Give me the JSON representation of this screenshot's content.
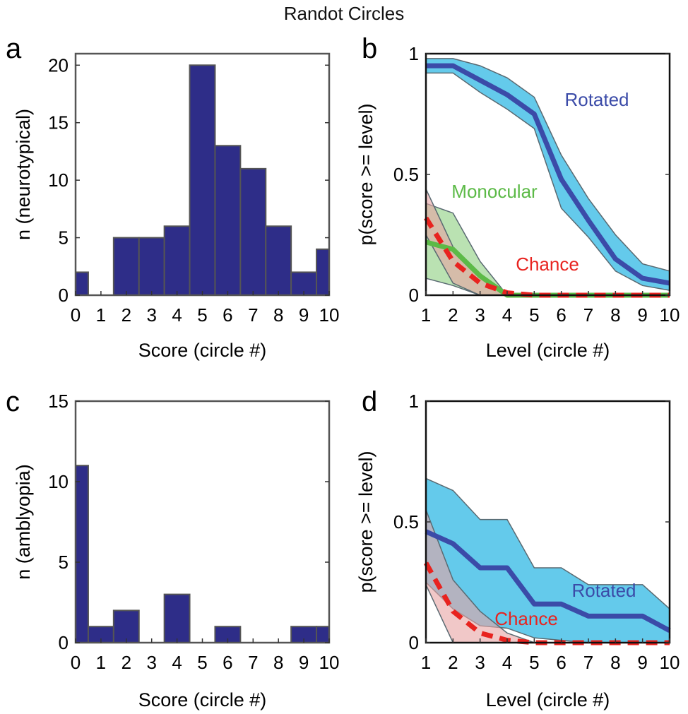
{
  "figure": {
    "title": "Randot Circles"
  },
  "colors": {
    "bar_fill": "#2e2d88",
    "bar_edge": "#555555",
    "rotated_line": "#3b4ba8",
    "rotated_band": "#5cc7ea",
    "monocular_line": "#5cba47",
    "monocular_band": "#8ccf7e",
    "chance_line": "#e8231f",
    "chance_band": "#e7a3a3",
    "band_edge": "#5a6a72",
    "rotated_label": "#3b4ba8",
    "monocular_label": "#5cba47",
    "chance_label": "#e8231f"
  },
  "chart_data": [
    {
      "panel": "a",
      "type": "bar",
      "xlabel": "Score (circle #)",
      "ylabel": "n (neurotypical)",
      "xlim": [
        0,
        10
      ],
      "ylim": [
        0,
        21
      ],
      "xticks": [
        "0",
        "1",
        "2",
        "3",
        "4",
        "5",
        "6",
        "7",
        "8",
        "9",
        "10"
      ],
      "yticks": [
        "0",
        "5",
        "10",
        "15",
        "20"
      ],
      "bars": [
        {
          "x0": 0.0,
          "x1": 0.5,
          "value": 2
        },
        {
          "x0": 0.5,
          "x1": 1.5,
          "value": 0
        },
        {
          "x0": 1.5,
          "x1": 2.5,
          "value": 5
        },
        {
          "x0": 2.5,
          "x1": 3.5,
          "value": 5
        },
        {
          "x0": 3.5,
          "x1": 4.5,
          "value": 6
        },
        {
          "x0": 4.5,
          "x1": 5.5,
          "value": 20
        },
        {
          "x0": 5.5,
          "x1": 6.5,
          "value": 13
        },
        {
          "x0": 6.5,
          "x1": 7.5,
          "value": 11
        },
        {
          "x0": 7.5,
          "x1": 8.5,
          "value": 6
        },
        {
          "x0": 8.5,
          "x1": 9.5,
          "value": 2
        },
        {
          "x0": 9.5,
          "x1": 10.0,
          "value": 4
        }
      ]
    },
    {
      "panel": "b",
      "type": "line",
      "xlabel": "Level (circle #)",
      "ylabel": "p(score >= level)",
      "xlim": [
        1,
        10
      ],
      "ylim": [
        0,
        1
      ],
      "xticks": [
        "1",
        "2",
        "3",
        "4",
        "5",
        "6",
        "7",
        "8",
        "9",
        "10"
      ],
      "yticks": [
        "0",
        "0.5",
        "1"
      ],
      "x": [
        1,
        2,
        3,
        4,
        5,
        6,
        7,
        8,
        9,
        10
      ],
      "series": [
        {
          "name": "Rotated",
          "key": "rotated",
          "values": [
            0.95,
            0.95,
            0.89,
            0.83,
            0.75,
            0.48,
            0.31,
            0.15,
            0.07,
            0.05
          ],
          "lower": [
            0.92,
            0.92,
            0.84,
            0.77,
            0.69,
            0.36,
            0.24,
            0.1,
            0.04,
            0.02
          ],
          "upper": [
            0.98,
            0.98,
            0.95,
            0.9,
            0.82,
            0.58,
            0.4,
            0.25,
            0.13,
            0.1
          ]
        },
        {
          "name": "Monocular",
          "key": "monocular",
          "values": [
            0.22,
            0.19,
            0.08,
            0.0,
            0.0,
            0.0,
            0.0,
            0.0,
            0.0,
            0.0
          ],
          "lower": [
            0.07,
            0.04,
            0.0,
            0.0,
            0.0,
            0.0,
            0.0,
            0.0,
            0.0,
            0.0
          ],
          "upper": [
            0.38,
            0.34,
            0.14,
            0.0,
            0.0,
            0.0,
            0.0,
            0.0,
            0.0,
            0.0
          ]
        },
        {
          "name": "Chance",
          "key": "chance",
          "values": [
            0.32,
            0.14,
            0.05,
            0.01,
            0.0,
            0.0,
            0.0,
            0.0,
            0.0,
            0.0
          ],
          "lower": [
            0.25,
            0.05,
            0.0,
            0.0,
            0.0,
            0.0,
            0.0,
            0.0,
            0.0,
            0.0
          ],
          "upper": [
            0.44,
            0.2,
            0.08,
            0.0,
            0.0,
            0.0,
            0.0,
            0.0,
            0.0,
            0.0
          ]
        }
      ],
      "labels": {
        "rotated": "Rotated",
        "monocular": "Monocular",
        "chance": "Chance"
      }
    },
    {
      "panel": "c",
      "type": "bar",
      "xlabel": "Score (circle #)",
      "ylabel": "n (amblyopia)",
      "xlim": [
        0,
        10
      ],
      "ylim": [
        0,
        15
      ],
      "xticks": [
        "0",
        "1",
        "2",
        "3",
        "4",
        "5",
        "6",
        "7",
        "8",
        "9",
        "10"
      ],
      "yticks": [
        "0",
        "5",
        "10",
        "15"
      ],
      "bars": [
        {
          "x0": 0.0,
          "x1": 0.5,
          "value": 11
        },
        {
          "x0": 0.5,
          "x1": 1.5,
          "value": 1
        },
        {
          "x0": 1.5,
          "x1": 2.5,
          "value": 2
        },
        {
          "x0": 2.5,
          "x1": 3.5,
          "value": 0
        },
        {
          "x0": 3.5,
          "x1": 4.5,
          "value": 3
        },
        {
          "x0": 4.5,
          "x1": 5.5,
          "value": 0
        },
        {
          "x0": 5.5,
          "x1": 6.5,
          "value": 1
        },
        {
          "x0": 6.5,
          "x1": 7.5,
          "value": 0
        },
        {
          "x0": 7.5,
          "x1": 8.5,
          "value": 0
        },
        {
          "x0": 8.5,
          "x1": 9.5,
          "value": 1
        },
        {
          "x0": 9.5,
          "x1": 10.0,
          "value": 1
        }
      ]
    },
    {
      "panel": "d",
      "type": "line",
      "xlabel": "Level (circle #)",
      "ylabel": "p(score >= level)",
      "xlim": [
        1,
        10
      ],
      "ylim": [
        0,
        1
      ],
      "xticks": [
        "1",
        "2",
        "3",
        "4",
        "5",
        "6",
        "7",
        "8",
        "9",
        "10"
      ],
      "yticks": [
        "0",
        "0.5",
        "1"
      ],
      "x": [
        1,
        2,
        3,
        4,
        5,
        6,
        7,
        8,
        9,
        10
      ],
      "series": [
        {
          "name": "Rotated",
          "key": "rotated",
          "values": [
            0.46,
            0.41,
            0.31,
            0.31,
            0.16,
            0.16,
            0.11,
            0.11,
            0.11,
            0.05
          ],
          "lower": [
            0.25,
            0.14,
            0.07,
            0.06,
            0.02,
            0.01,
            0.0,
            0.0,
            0.0,
            0.0
          ],
          "upper": [
            0.68,
            0.63,
            0.51,
            0.51,
            0.31,
            0.31,
            0.24,
            0.24,
            0.24,
            0.14
          ]
        },
        {
          "name": "Chance",
          "key": "chance",
          "values": [
            0.33,
            0.13,
            0.04,
            0.01,
            0.0,
            0.0,
            0.0,
            0.0,
            0.0,
            0.0
          ],
          "lower": [
            0.24,
            0.0,
            0.0,
            0.0,
            0.0,
            0.0,
            0.0,
            0.0,
            0.0,
            0.0
          ],
          "upper": [
            0.55,
            0.26,
            0.13,
            0.04,
            0.0,
            0.0,
            0.0,
            0.0,
            0.0,
            0.0
          ]
        }
      ],
      "labels": {
        "rotated": "Rotated",
        "chance": "Chance"
      }
    }
  ]
}
